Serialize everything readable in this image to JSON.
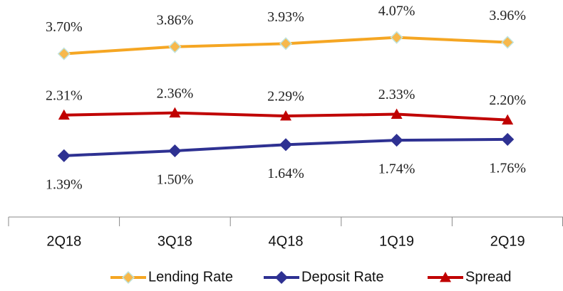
{
  "chart_data": {
    "type": "line",
    "categories": [
      "2Q18",
      "3Q18",
      "4Q18",
      "1Q19",
      "2Q19"
    ],
    "series": [
      {
        "name": "Lending Rate",
        "color": "#F5A623",
        "marker": "diamond",
        "values": [
          3.7,
          3.86,
          3.93,
          4.07,
          3.96
        ],
        "value_labels": [
          "3.70%",
          "3.86%",
          "3.93%",
          "4.07%",
          "3.96%"
        ]
      },
      {
        "name": "Deposit Rate",
        "color": "#2E3192",
        "marker": "diamond",
        "values": [
          1.39,
          1.5,
          1.64,
          1.74,
          1.76
        ],
        "value_labels": [
          "1.39%",
          "1.50%",
          "1.64%",
          "1.74%",
          "1.76%"
        ]
      },
      {
        "name": "Spread",
        "color": "#C00000",
        "marker": "triangle",
        "values": [
          2.31,
          2.36,
          2.29,
          2.33,
          2.2
        ],
        "value_labels": [
          "2.31%",
          "2.36%",
          "2.29%",
          "2.33%",
          "2.20%"
        ]
      }
    ],
    "legend": "bottom"
  }
}
